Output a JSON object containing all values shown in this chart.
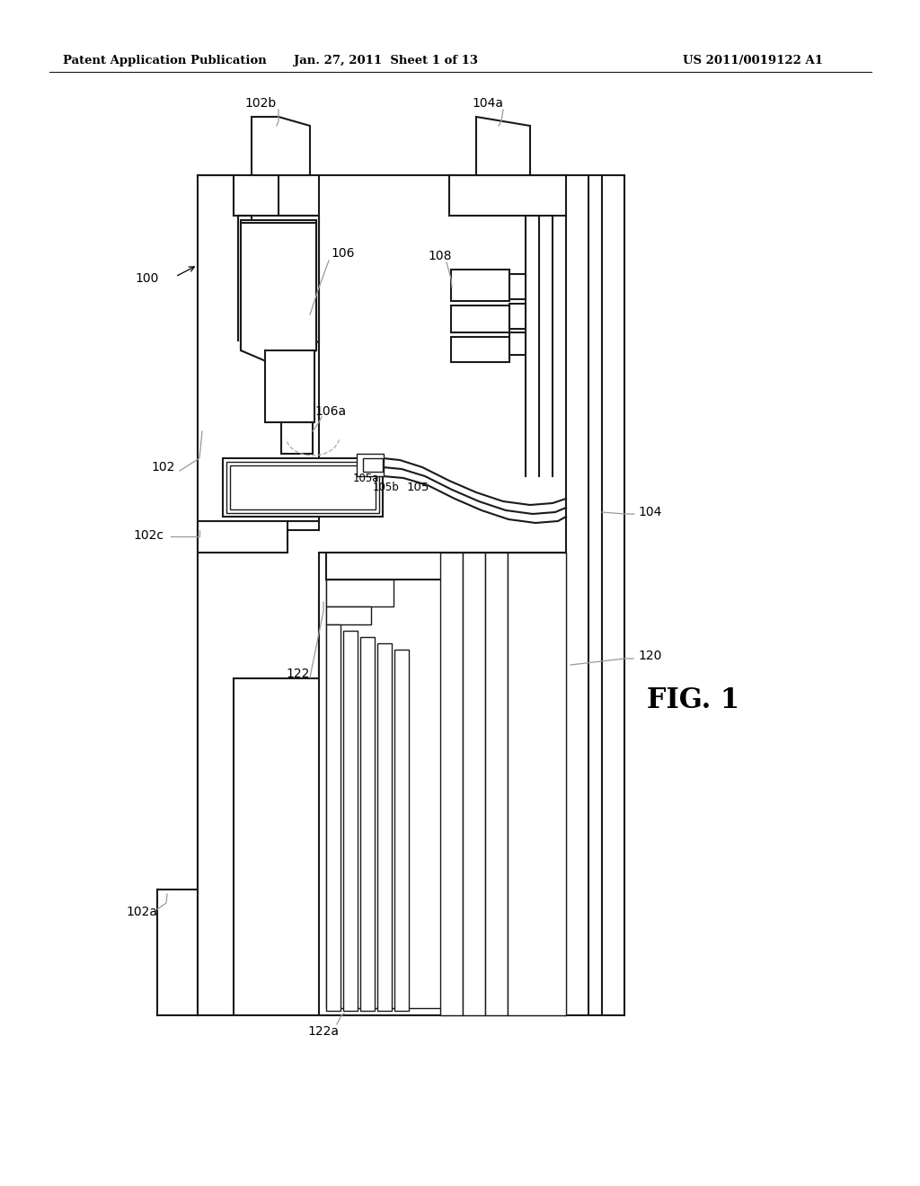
{
  "bg_color": "#ffffff",
  "lc": "#1a1a1a",
  "lg": "#999999",
  "header_left": "Patent Application Publication",
  "header_center": "Jan. 27, 2011  Sheet 1 of 13",
  "header_right": "US 2011/0019122 A1",
  "fig_label": "FIG. 1",
  "lw_main": 1.5,
  "lw_thin": 1.0,
  "lw_hdr": 0.8,
  "label_fs": 9.5,
  "fig_fs": 22
}
